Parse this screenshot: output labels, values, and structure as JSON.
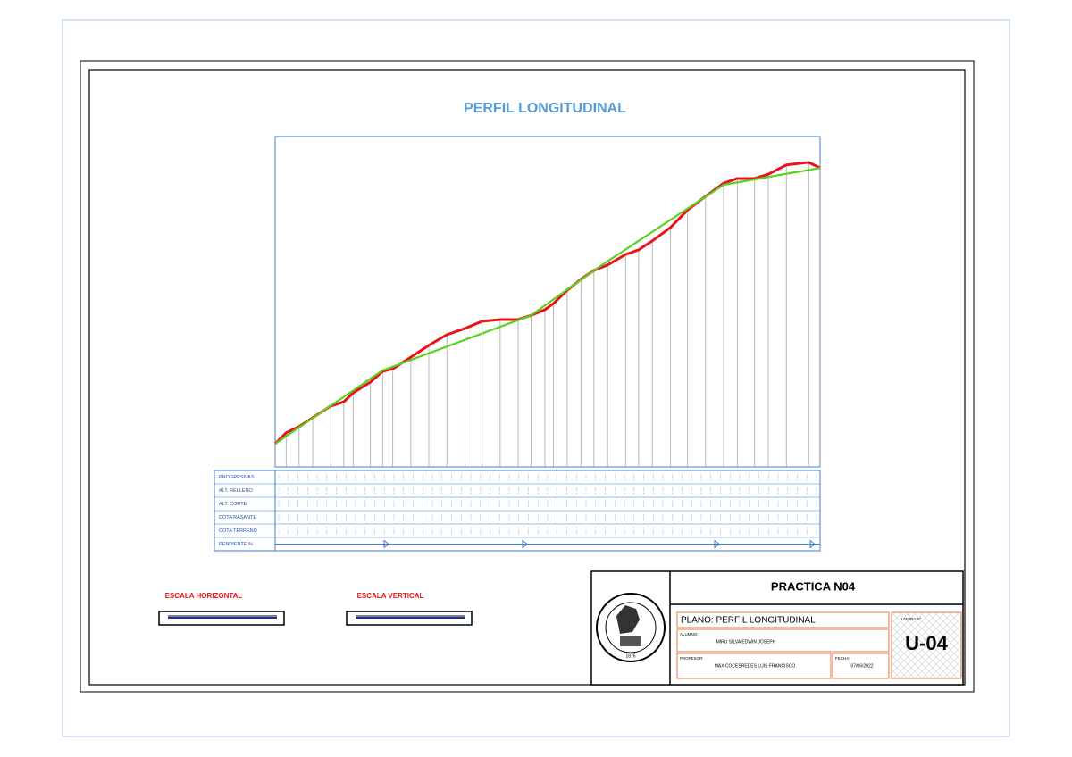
{
  "title": "PERFIL LONGITUDINAL",
  "chart_data": {
    "type": "line",
    "xlim": [
      0,
      100
    ],
    "ylim": [
      0,
      100
    ],
    "series": [
      {
        "name": "COTA TERRENO",
        "color": "#e8141b",
        "x": [
          0,
          2.0,
          4.4,
          6.9,
          10.2,
          12.6,
          14.3,
          17.5,
          19.7,
          21.6,
          24.9,
          28.2,
          31.5,
          34.8,
          38.0,
          41.3,
          44.6,
          47.0,
          49.5,
          51.1,
          53.6,
          56.1,
          58.5,
          61.0,
          64.3,
          66.7,
          69.2,
          72.5,
          75.7,
          79.0,
          82.3,
          84.8,
          88.0,
          90.5,
          93.8,
          97.9,
          100
        ],
        "values": [
          7.0,
          10.3,
          12.2,
          14.9,
          18.4,
          19.7,
          22.4,
          25.7,
          28.9,
          29.7,
          33.2,
          36.8,
          40.0,
          41.9,
          44.1,
          44.6,
          44.6,
          45.9,
          47.6,
          49.5,
          53.5,
          56.8,
          59.5,
          61.1,
          64.3,
          65.7,
          68.4,
          72.4,
          77.8,
          81.9,
          85.9,
          87.3,
          87.3,
          88.6,
          91.4,
          92.2,
          90.5
        ]
      },
      {
        "name": "COTA RASANTE",
        "color": "#5cd11c",
        "x": [
          0,
          19.7,
          47.0,
          58.5,
          82.3,
          100
        ],
        "values": [
          7.0,
          29.2,
          45.9,
          59.5,
          85.4,
          90.5
        ]
      }
    ]
  },
  "bands": [
    "PROGRESIVAS",
    "ALT. RELLENO",
    "ALT. CORTE",
    "COTA RASANTE",
    "COTA TERRENO",
    "PENDIENTE %"
  ],
  "scales": {
    "horizontal": "ESCALA HORIZONTAL",
    "vertical": "ESCALA VERTICAL"
  },
  "title_block": {
    "title": "PRACTICA N04",
    "plano": "PLANO: PERFIL LONGITUDINAL",
    "alumno_label": "ALUMNO:",
    "alumno": "MIRU SILVA EDWIN JOSEPH",
    "profesor_label": "PROFESOR:",
    "profesor": "MAX COCESREDES LUIS FRANCISCO",
    "fecha_label": "FECHA:",
    "fecha": "07/06/2022",
    "lamina_label": "LAMINA N°",
    "lamina": "U-04",
    "logo_year": "1876"
  }
}
